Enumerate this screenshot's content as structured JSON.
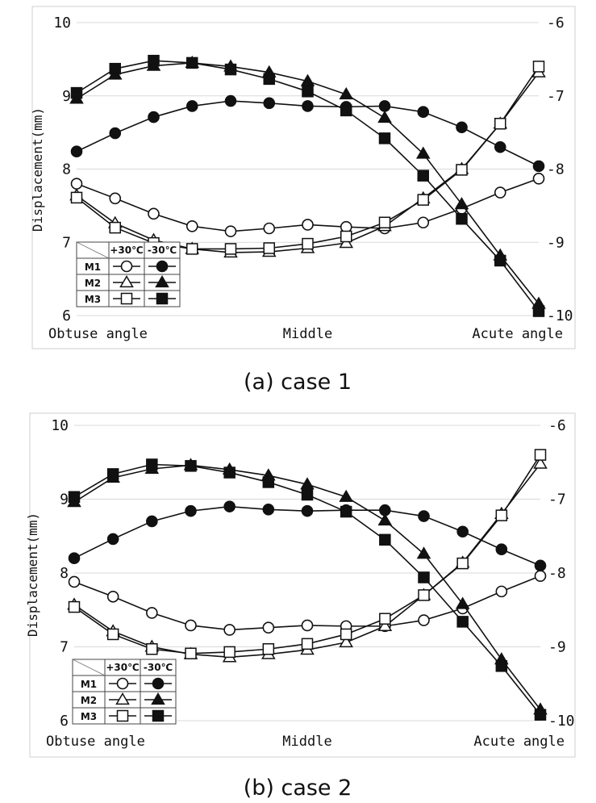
{
  "captions": [
    "(a) case 1",
    "(b) case 2"
  ],
  "legend": {
    "col_headers": [
      "+30℃",
      "-30℃"
    ],
    "row_labels": [
      "M1",
      "M2",
      "M3"
    ],
    "markers": [
      "circle",
      "triangle",
      "square"
    ]
  },
  "chart_data": [
    {
      "type": "line",
      "title": "(a) case 1",
      "ylabel": "Displacement(mm)",
      "x": [
        1,
        2,
        3,
        4,
        5,
        6,
        7,
        8,
        9,
        10,
        11,
        12,
        13
      ],
      "x_tick_labels": [
        "Obtuse angle",
        "Middle",
        "Acute angle"
      ],
      "x_tick_positions": [
        1,
        7,
        13
      ],
      "ylim": [
        6,
        10
      ],
      "y_ticks": [
        "6",
        "7",
        "8",
        "9",
        "10"
      ],
      "y2lim": [
        -10,
        -6
      ],
      "y2_ticks": [
        "-10",
        "-9",
        "-8",
        "-7",
        "-6"
      ],
      "grid": true,
      "legend_placement": "bottom-left",
      "series": [
        {
          "name": "M1",
          "temp": "+30℃",
          "axis": "left",
          "marker": "circle",
          "filled": false,
          "values": [
            7.8,
            7.6,
            7.39,
            7.22,
            7.15,
            7.19,
            7.24,
            7.21,
            7.19,
            7.27,
            7.46,
            7.68,
            7.87
          ]
        },
        {
          "name": "M2",
          "temp": "+30℃",
          "axis": "left",
          "marker": "triangle",
          "filled": false,
          "values": [
            7.64,
            7.26,
            7.03,
            6.91,
            6.86,
            6.87,
            6.92,
            6.99,
            7.22,
            7.6,
            8.0,
            8.62,
            9.32
          ]
        },
        {
          "name": "M3",
          "temp": "+30℃",
          "axis": "left",
          "marker": "square",
          "filled": false,
          "values": [
            7.61,
            7.2,
            6.99,
            6.91,
            6.91,
            6.92,
            6.98,
            7.08,
            7.27,
            7.58,
            7.99,
            8.62,
            9.4
          ]
        },
        {
          "name": "M1",
          "temp": "-30℃",
          "axis": "right",
          "marker": "circle",
          "filled": true,
          "values": [
            -7.76,
            -7.51,
            -7.29,
            -7.14,
            -7.07,
            -7.1,
            -7.14,
            -7.15,
            -7.14,
            -7.22,
            -7.43,
            -7.7,
            -7.96
          ]
        },
        {
          "name": "M2",
          "temp": "-30℃",
          "axis": "right",
          "marker": "triangle",
          "filled": true,
          "values": [
            -7.04,
            -6.71,
            -6.59,
            -6.55,
            -6.6,
            -6.68,
            -6.8,
            -6.98,
            -7.3,
            -7.79,
            -8.48,
            -9.18,
            -9.84
          ]
        },
        {
          "name": "M3",
          "temp": "-30℃",
          "axis": "right",
          "marker": "square",
          "filled": true,
          "values": [
            -6.96,
            -6.63,
            -6.52,
            -6.55,
            -6.64,
            -6.77,
            -6.94,
            -7.2,
            -7.58,
            -8.09,
            -8.68,
            -9.25,
            -9.94
          ]
        }
      ]
    },
    {
      "type": "line",
      "title": "(b) case 2",
      "ylabel": "Displacement(mm)",
      "x": [
        1,
        2,
        3,
        4,
        5,
        6,
        7,
        8,
        9,
        10,
        11,
        12,
        13
      ],
      "x_tick_labels": [
        "Obtuse angle",
        "Middle",
        "Acute angle"
      ],
      "x_tick_positions": [
        1,
        7,
        13
      ],
      "ylim": [
        6,
        10
      ],
      "y_ticks": [
        "6",
        "7",
        "8",
        "9",
        "10"
      ],
      "y2lim": [
        -10,
        -6
      ],
      "y2_ticks": [
        "-10",
        "-9",
        "-8",
        "-7",
        "-6"
      ],
      "grid": true,
      "legend_placement": "bottom-left",
      "series": [
        {
          "name": "M1",
          "temp": "+30℃",
          "axis": "left",
          "marker": "circle",
          "filled": false,
          "values": [
            7.88,
            7.68,
            7.46,
            7.29,
            7.23,
            7.26,
            7.29,
            7.28,
            7.28,
            7.36,
            7.52,
            7.75,
            7.96
          ]
        },
        {
          "name": "M2",
          "temp": "+30℃",
          "axis": "left",
          "marker": "triangle",
          "filled": false,
          "values": [
            7.57,
            7.21,
            7.0,
            6.9,
            6.86,
            6.9,
            6.96,
            7.06,
            7.28,
            7.7,
            8.14,
            8.8,
            9.48
          ]
        },
        {
          "name": "M3",
          "temp": "+30℃",
          "axis": "left",
          "marker": "square",
          "filled": false,
          "values": [
            7.54,
            7.17,
            6.97,
            6.91,
            6.93,
            6.97,
            7.04,
            7.17,
            7.38,
            7.7,
            8.13,
            8.78,
            9.6
          ]
        },
        {
          "name": "M1",
          "temp": "-30℃",
          "axis": "right",
          "marker": "circle",
          "filled": true,
          "values": [
            -7.8,
            -7.54,
            -7.3,
            -7.16,
            -7.1,
            -7.14,
            -7.16,
            -7.15,
            -7.15,
            -7.23,
            -7.44,
            -7.68,
            -7.9
          ]
        },
        {
          "name": "M2",
          "temp": "-30℃",
          "axis": "right",
          "marker": "triangle",
          "filled": true,
          "values": [
            -7.04,
            -6.71,
            -6.59,
            -6.54,
            -6.6,
            -6.68,
            -6.8,
            -6.97,
            -7.29,
            -7.74,
            -8.42,
            -9.17,
            -9.85
          ]
        },
        {
          "name": "M3",
          "temp": "-30℃",
          "axis": "right",
          "marker": "square",
          "filled": true,
          "values": [
            -6.97,
            -6.66,
            -6.53,
            -6.55,
            -6.64,
            -6.77,
            -6.94,
            -7.17,
            -7.55,
            -8.06,
            -8.66,
            -9.26,
            -9.92
          ]
        }
      ]
    }
  ]
}
